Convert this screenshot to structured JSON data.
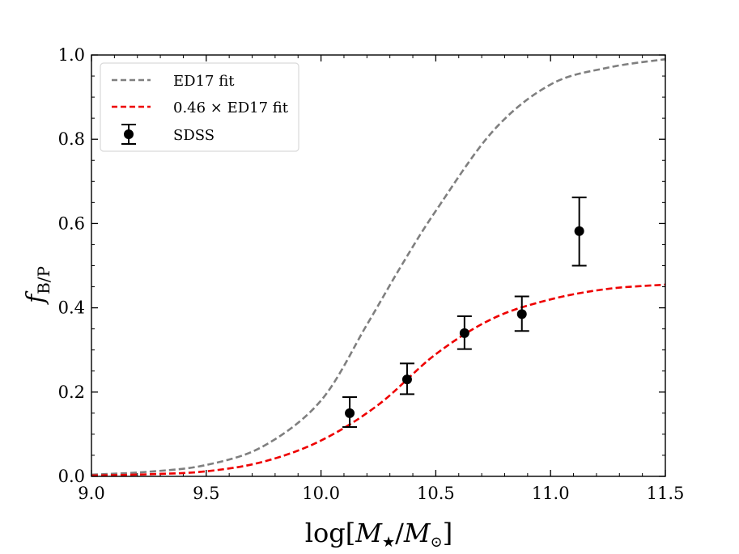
{
  "chart_data": {
    "type": "line",
    "xlabel": {
      "base": "log[",
      "m1": "M",
      "sub1": "★",
      "slash": "/",
      "m2": "M",
      "sub2": "⊙",
      "close": "]"
    },
    "ylabel": {
      "f": "f",
      "sub": "B/P"
    },
    "xlim": [
      9.0,
      11.5
    ],
    "ylim": [
      0.0,
      1.0
    ],
    "xticks": [
      "9.0",
      "9.5",
      "10.0",
      "10.5",
      "11.0",
      "11.5"
    ],
    "yticks": [
      "0.0",
      "0.2",
      "0.4",
      "0.6",
      "0.8",
      "1.0"
    ],
    "grid": false,
    "legend_position": "top-left",
    "series": [
      {
        "name": "ED17 fit",
        "style": "dashed",
        "color": "#7f7f7f",
        "x": [
          9.0,
          9.25,
          9.5,
          9.75,
          10.0,
          10.2,
          10.35,
          10.5,
          10.75,
          11.0,
          11.25,
          11.5
        ],
        "y": [
          0.004,
          0.011,
          0.027,
          0.072,
          0.18,
          0.36,
          0.5,
          0.63,
          0.82,
          0.93,
          0.97,
          0.99
        ]
      },
      {
        "name": "0.46 × ED17 fit",
        "style": "dashed",
        "color": "#ee0000",
        "x": [
          9.0,
          9.25,
          9.5,
          9.75,
          10.0,
          10.25,
          10.5,
          10.75,
          11.0,
          11.25,
          11.5
        ],
        "y": [
          0.002,
          0.005,
          0.012,
          0.035,
          0.085,
          0.17,
          0.29,
          0.375,
          0.42,
          0.445,
          0.455
        ]
      },
      {
        "name": "SDSS",
        "style": "errorbar",
        "color": "#000000",
        "x": [
          10.125,
          10.375,
          10.625,
          10.875,
          11.125
        ],
        "y": [
          0.15,
          0.23,
          0.34,
          0.385,
          0.582
        ],
        "yerr_low": [
          0.033,
          0.035,
          0.038,
          0.04,
          0.082
        ],
        "yerr_high": [
          0.038,
          0.038,
          0.04,
          0.042,
          0.08
        ]
      }
    ]
  }
}
